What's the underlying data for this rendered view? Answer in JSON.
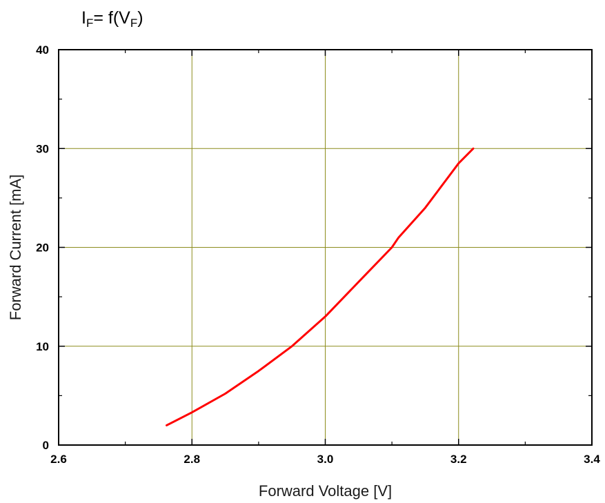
{
  "title": {
    "main_1": "I",
    "sub_1": "F",
    "main_2": "= f(V",
    "sub_2": "F",
    "main_3": ")"
  },
  "chart_data": {
    "type": "line",
    "xlabel": "Forward Voltage [V]",
    "ylabel": "Forward Current [mA]",
    "xlim": [
      2.6,
      3.4
    ],
    "ylim": [
      0,
      40
    ],
    "x_ticks": [
      "2.6",
      "2.8",
      "3.0",
      "3.2",
      "3.4"
    ],
    "y_ticks": [
      "0",
      "10",
      "20",
      "30",
      "40"
    ],
    "grid": true,
    "legend": "none",
    "series": [
      {
        "color": "#ff0000",
        "x": [
          2.762,
          2.8,
          2.85,
          2.9,
          2.95,
          3.0,
          3.05,
          3.1,
          3.11,
          3.15,
          3.2,
          3.222
        ],
        "y": [
          2.0,
          3.3,
          5.2,
          7.5,
          10.0,
          13.0,
          16.5,
          20.0,
          21.0,
          24.0,
          28.5,
          30.0
        ]
      }
    ],
    "colors": {
      "grid": "#8c8c1c",
      "axis": "#000000",
      "line": "#ff0000"
    }
  }
}
